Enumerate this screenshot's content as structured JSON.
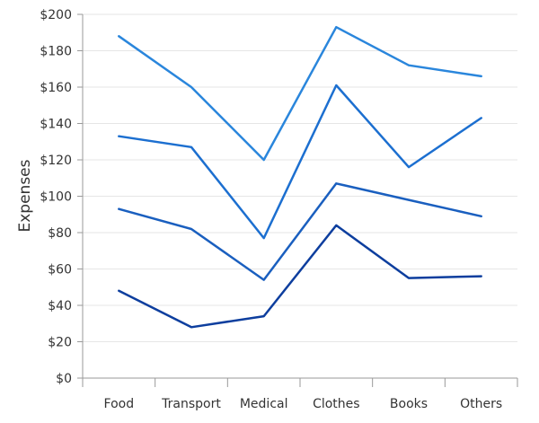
{
  "chart_data": {
    "type": "line",
    "title": "",
    "xlabel": "",
    "ylabel": "Expenses",
    "categories": [
      "Food",
      "Transport",
      "Medical",
      "Clothes",
      "Books",
      "Others"
    ],
    "ylim": [
      0,
      200
    ],
    "y_ticks": [
      "$0",
      "$20",
      "$40",
      "$60",
      "$80",
      "$100",
      "$120",
      "$140",
      "$160",
      "$180",
      "$200"
    ],
    "grid": true,
    "legend": "none",
    "series": [
      {
        "values": [
          48,
          28,
          34,
          84,
          55,
          56
        ],
        "color": "#0D3E9E"
      },
      {
        "values": [
          93,
          82,
          54,
          107,
          98,
          89
        ],
        "color": "#1A5FBF"
      },
      {
        "values": [
          133,
          127,
          77,
          161,
          116,
          143
        ],
        "color": "#1C6FD0"
      },
      {
        "values": [
          188,
          160,
          120,
          193,
          172,
          166
        ],
        "color": "#2A86DC"
      }
    ],
    "colors": {
      "grid": "#e6e6e6",
      "axis": "#9a9a9a",
      "text": "#333333"
    }
  }
}
